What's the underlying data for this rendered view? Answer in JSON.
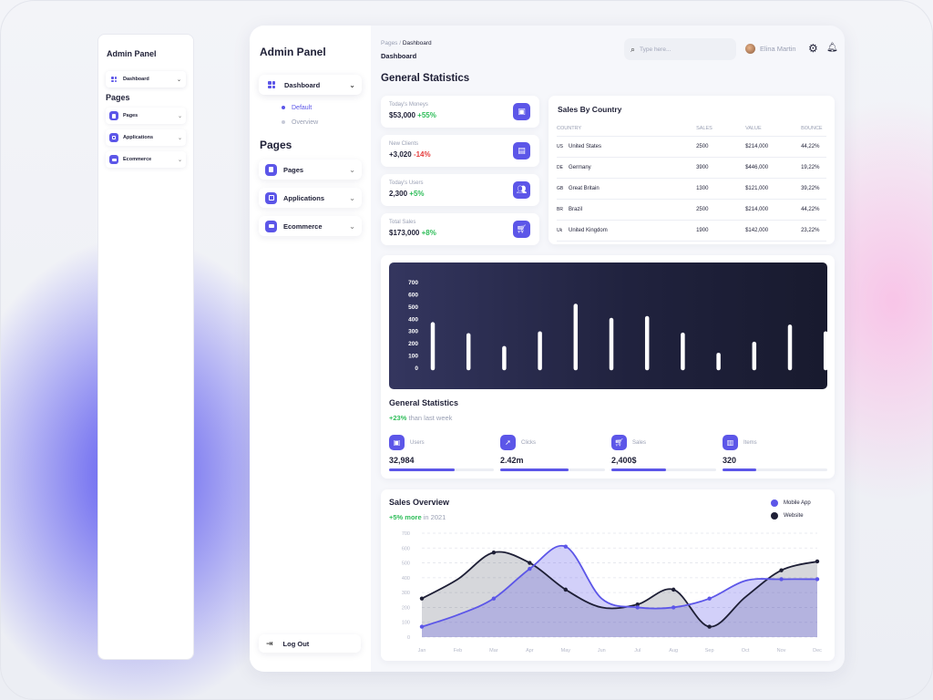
{
  "mini": {
    "title": "Admin Panel",
    "dashboard": "Dashboard",
    "pages_heading": "Pages",
    "items": [
      "Pages",
      "Applications",
      "Ecommerce"
    ]
  },
  "sidebar": {
    "title": "Admin Panel",
    "dashboard": "Dashboard",
    "sub": [
      "Default",
      "Overview"
    ],
    "pages_heading": "Pages",
    "items": [
      "Pages",
      "Applications",
      "Ecommerce"
    ],
    "logout": "Log Out"
  },
  "header": {
    "breadcrumb_parent": "Pages",
    "breadcrumb_sep": " / ",
    "breadcrumb_current": "Dashboard",
    "page_title": "Dashboard",
    "search_placeholder": "Type here...",
    "user_name": "Elina Martin"
  },
  "section_title": "General Statistics",
  "stats": [
    {
      "label": "Today's Moneys",
      "value": "$53,000",
      "delta": "+55%",
      "positive": true,
      "icon": "wallet-icon"
    },
    {
      "label": "New Clients",
      "value": "+3,020",
      "delta": "-14%",
      "positive": false,
      "icon": "document-icon"
    },
    {
      "label": "Today's Users",
      "value": "2,300",
      "delta": "+5%",
      "positive": true,
      "icon": "users-icon"
    },
    {
      "label": "Total Sales",
      "value": "$173,000",
      "delta": "+8%",
      "positive": true,
      "icon": "cart-icon"
    }
  ],
  "country_table": {
    "title": "Sales By Country",
    "columns": [
      "COUNTRY",
      "SALES",
      "VALUE",
      "BOUNCE"
    ],
    "rows": [
      {
        "code": "US",
        "country": "United States",
        "sales": "2500",
        "value": "$214,000",
        "bounce": "44,22%"
      },
      {
        "code": "DE",
        "country": "Germany",
        "sales": "3900",
        "value": "$446,000",
        "bounce": "19,22%"
      },
      {
        "code": "GB",
        "country": "Great Britain",
        "sales": "1300",
        "value": "$121,000",
        "bounce": "39,22%"
      },
      {
        "code": "BR",
        "country": "Brazil",
        "sales": "2500",
        "value": "$214,000",
        "bounce": "44,22%"
      },
      {
        "code": "Uk",
        "country": "United Kingdom",
        "sales": "1900",
        "value": "$142,000",
        "bounce": "23,22%"
      }
    ]
  },
  "general_card": {
    "title": "General Statistics",
    "delta": "+23%",
    "delta_text": " than last week",
    "metrics": [
      {
        "label": "Users",
        "value": "32,984",
        "progress": 0.63,
        "icon": "wallet-icon"
      },
      {
        "label": "Clicks",
        "value": "2.42m",
        "progress": 0.65,
        "icon": "rocket-icon"
      },
      {
        "label": "Sales",
        "value": "2,400$",
        "progress": 0.52,
        "icon": "cart-icon"
      },
      {
        "label": "Items",
        "value": "320",
        "progress": 0.32,
        "icon": "chart-icon"
      }
    ]
  },
  "sales_overview": {
    "title": "Sales Overview",
    "delta": "+5% more",
    "delta_text": " in 2021",
    "legend": [
      "Mobile App",
      "Website"
    ]
  },
  "chart_data": [
    {
      "type": "bar",
      "ylim": [
        0,
        700
      ],
      "yticks": [
        0,
        100,
        200,
        300,
        400,
        500,
        600,
        700
      ],
      "values": [
        360,
        270,
        165,
        285,
        510,
        395,
        410,
        275,
        110,
        200,
        340,
        285
      ],
      "bar_color": "#ffffff",
      "background": "#20223e"
    },
    {
      "type": "area",
      "title": "Sales Overview",
      "categories": [
        "Jan",
        "Feb",
        "Mar",
        "Apr",
        "May",
        "Jun",
        "Jul",
        "Aug",
        "Sep",
        "Oct",
        "Nov",
        "Dec"
      ],
      "ylim": [
        0,
        700
      ],
      "yticks": [
        0,
        100,
        200,
        300,
        400,
        500,
        600,
        700
      ],
      "series": [
        {
          "name": "Mobile App",
          "color": "#5c56e8",
          "values": [
            70,
            150,
            260,
            460,
            610,
            260,
            200,
            200,
            260,
            380,
            390,
            390
          ]
        },
        {
          "name": "Website",
          "color": "#1e1f36",
          "values": [
            260,
            390,
            570,
            500,
            320,
            200,
            220,
            320,
            70,
            270,
            450,
            510
          ]
        }
      ]
    }
  ]
}
